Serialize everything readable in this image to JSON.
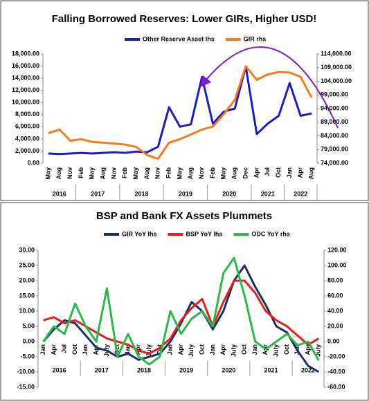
{
  "chart_data": [
    {
      "type": "line",
      "title": "Falling Borrowed Reserves: Lower GIRs, Higher USD!",
      "categories": [
        "May",
        "Aug",
        "Nov",
        "Feb",
        "May",
        "Aug",
        "Nov",
        "Feb",
        "May",
        "Aug",
        "Nov",
        "Feb",
        "May",
        "Aug",
        "Nov",
        "Feb",
        "May",
        "Aug",
        "Dec",
        "Apr",
        "Jul",
        "Oct",
        "Jan",
        "Apr",
        "Aug"
      ],
      "category_years": [
        "2016",
        "2016",
        "2016",
        "2017",
        "2017",
        "2017",
        "2017",
        "2018",
        "2018",
        "2018",
        "2018",
        "2019",
        "2019",
        "2019",
        "2019",
        "2020",
        "2020",
        "2020",
        "2020",
        "2021",
        "2021",
        "2021",
        "2022",
        "2022",
        "2022"
      ],
      "series": [
        {
          "name": "Other Reserve Asset lhs",
          "color": "#1c1cc8",
          "values": [
            1600,
            1500,
            1600,
            1700,
            1600,
            1700,
            1800,
            1700,
            1900,
            1800,
            2700,
            9200,
            6000,
            6400,
            14200,
            6500,
            8500,
            9000,
            15900,
            4800,
            6500,
            7800,
            13200,
            7800,
            8200
          ]
        },
        {
          "name": "GIR rhs",
          "color": "#f47c20",
          "axis": "y2",
          "values": [
            85000,
            86300,
            82200,
            82800,
            81800,
            81500,
            81200,
            80800,
            80000,
            77000,
            75600,
            81500,
            82800,
            84500,
            86300,
            87400,
            92000,
            97200,
            109500,
            104500,
            106500,
            107400,
            107200,
            105600,
            98000
          ]
        }
      ],
      "ylim": [
        0,
        18000
      ],
      "yticks": [
        {
          "value": 0,
          "label": "0.00"
        },
        {
          "value": 2000,
          "label": "2,000.00"
        },
        {
          "value": 4000,
          "label": "4,000.00"
        },
        {
          "value": 6000,
          "label": "6,000.00"
        },
        {
          "value": 8000,
          "label": "8,000.00"
        },
        {
          "value": 10000,
          "label": "10,000.00"
        },
        {
          "value": 12000,
          "label": "12,000.00"
        },
        {
          "value": 14000,
          "label": "14,000.00"
        },
        {
          "value": 16000,
          "label": "16,000.00"
        },
        {
          "value": 18000,
          "label": "18,000.00"
        }
      ],
      "y2lim": [
        74000,
        114000
      ],
      "y2ticks": [
        {
          "value": 74000,
          "label": "74,000.00"
        },
        {
          "value": 79000,
          "label": "79,000.00"
        },
        {
          "value": 84000,
          "label": "84,000.00"
        },
        {
          "value": 89000,
          "label": "89,000.00"
        },
        {
          "value": 94000,
          "label": "94,000.00"
        },
        {
          "value": 99000,
          "label": "99,000.00"
        },
        {
          "value": 104000,
          "label": "104,000.00"
        },
        {
          "value": 109000,
          "label": "109,000.00"
        },
        {
          "value": 114000,
          "label": "114,000.00"
        }
      ],
      "grid": false
    },
    {
      "type": "line",
      "title": "BSP and Bank FX Assets Plummets",
      "categories": [
        "Jan",
        "Apr",
        "Jul",
        "Oct",
        "Jan",
        "Apr",
        "July",
        "Oct",
        "Jan",
        "Apr",
        "July",
        "Oct",
        "Jan",
        "Apr",
        "July",
        "Oct",
        "Jan",
        "Apr",
        "July",
        "Oct",
        "Jan",
        "Apr",
        "July",
        "Oct",
        "Jan",
        "Apr",
        "July"
      ],
      "category_years": [
        "2016",
        "2016",
        "2016",
        "2016",
        "2017",
        "2017",
        "2017",
        "2017",
        "2018",
        "2018",
        "2018",
        "2018",
        "2019",
        "2019",
        "2019",
        "2019",
        "2020",
        "2020",
        "2020",
        "2020",
        "2021",
        "2021",
        "2021",
        "2021",
        "2022",
        "2022",
        "2022"
      ],
      "series": [
        {
          "name": "GIR YoY lhs",
          "color": "#1a2f6e",
          "values": [
            0,
            4,
            7,
            6,
            2,
            -2,
            -3,
            -5,
            -4,
            -6,
            -5,
            -4,
            0,
            6,
            13,
            10,
            4,
            10,
            20,
            25,
            18,
            12,
            5,
            3,
            -3,
            -8,
            -10
          ]
        },
        {
          "name": "BSP YoY lhs",
          "color": "#e8201c",
          "values": [
            7,
            8,
            6,
            7,
            5,
            3,
            1,
            0,
            -1,
            -3,
            -4,
            -2,
            1,
            7,
            11,
            14,
            5,
            13,
            20,
            20,
            16,
            10,
            7,
            5,
            2,
            -1,
            1
          ]
        },
        {
          "name": "ODC YoY rhs",
          "color": "#2cb84a",
          "axis": "y2",
          "values": [
            0,
            20,
            10,
            50,
            20,
            0,
            70,
            -20,
            10,
            -20,
            -30,
            -20,
            40,
            10,
            30,
            40,
            20,
            90,
            110,
            60,
            0,
            -10,
            0,
            10,
            -5,
            0,
            -25
          ]
        }
      ],
      "ylim": [
        -15,
        30
      ],
      "yticks": [
        {
          "value": -15,
          "label": "-15.00"
        },
        {
          "value": -10,
          "label": "-10.00"
        },
        {
          "value": -5,
          "label": "-5.00"
        },
        {
          "value": 0,
          "label": "0.00"
        },
        {
          "value": 5,
          "label": "5.00"
        },
        {
          "value": 10,
          "label": "10.00"
        },
        {
          "value": 15,
          "label": "15.00"
        },
        {
          "value": 20,
          "label": "20.00"
        },
        {
          "value": 25,
          "label": "25.00"
        },
        {
          "value": 30,
          "label": "30.00"
        }
      ],
      "y2lim": [
        -60,
        120
      ],
      "y2ticks": [
        {
          "value": -60,
          "label": "-60.00"
        },
        {
          "value": -40,
          "label": "-40.00"
        },
        {
          "value": -20,
          "label": "-20.00"
        },
        {
          "value": 0,
          "label": "0.00"
        },
        {
          "value": 20,
          "label": "20.00"
        },
        {
          "value": 40,
          "label": "40.00"
        },
        {
          "value": 60,
          "label": "60.00"
        },
        {
          "value": 80,
          "label": "80.00"
        },
        {
          "value": 100,
          "label": "100.00"
        },
        {
          "value": 120,
          "label": "120.00"
        }
      ],
      "grid": false
    }
  ]
}
